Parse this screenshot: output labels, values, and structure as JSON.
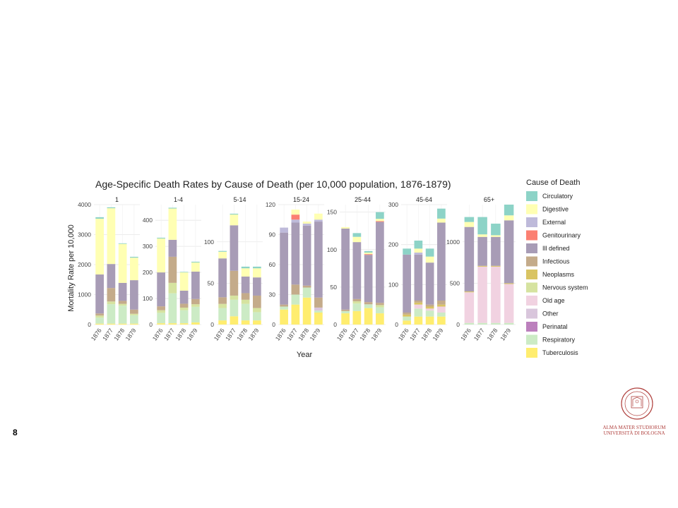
{
  "slide": {
    "page_number": "8"
  },
  "logo": {
    "line1": "ALMA MATER STUDIORUM",
    "line2": "UNIVERSITÀ DI BOLOGNA",
    "seal_text": "ALMA MATER STUDIORUM A.D. 1088",
    "color": "#b0413e"
  },
  "chart_data": {
    "type": "bar",
    "title": "Age-Specific Death Rates by Cause of Death (per 10,000 population, 1876-1879)",
    "xlabel": "Year",
    "ylabel": "Mortality Rate per 10,000",
    "legend_title": "Cause of Death",
    "legend_position": "right",
    "grid": true,
    "stacked": true,
    "categories": [
      "1876",
      "1877",
      "1878",
      "1879"
    ],
    "causes": [
      "Circulatory",
      "Digestive",
      "External",
      "Genitourinary",
      "Ill defined",
      "Infectious",
      "Neoplasms",
      "Nervous system",
      "Old age",
      "Other",
      "Perinatal",
      "Respiratory",
      "Tuberculosis"
    ],
    "colors": {
      "Circulatory": "#8dd3c7",
      "Digestive": "#ffffb3",
      "External": "#bebada",
      "Genitourinary": "#fb8072",
      "Ill defined": "#a89cb6",
      "Infectious": "#c4ab8a",
      "Neoplasms": "#d9c463",
      "Nervous system": "#d6e3a0",
      "Old age": "#f1d2e1",
      "Other": "#d9c6dc",
      "Perinatal": "#bc80bd",
      "Respiratory": "#ccebc5",
      "Tuberculosis": "#ffed6f"
    },
    "panels": [
      {
        "label": "1",
        "ylim": [
          0,
          4000
        ],
        "yticks": [
          0,
          1000,
          2000,
          3000,
          4000
        ],
        "series": [
          {
            "name": "Tuberculosis",
            "values": [
              30,
              30,
              30,
              30
            ]
          },
          {
            "name": "Respiratory",
            "values": [
              200,
              650,
              600,
              280
            ]
          },
          {
            "name": "Nervous system",
            "values": [
              70,
              90,
              60,
              50
            ]
          },
          {
            "name": "Infectious",
            "values": [
              70,
              450,
              100,
              140
            ]
          },
          {
            "name": "Ill defined",
            "values": [
              1300,
              800,
              600,
              980
            ]
          },
          {
            "name": "Digestive",
            "values": [
              1860,
              1860,
              1300,
              750
            ]
          },
          {
            "name": "Circulatory",
            "values": [
              50,
              30,
              20,
              30
            ]
          }
        ]
      },
      {
        "label": "1-4",
        "ylim": [
          0,
          460
        ],
        "yticks": [
          0,
          100,
          200,
          300,
          400
        ],
        "series": [
          {
            "name": "Tuberculosis",
            "values": [
              5,
              5,
              5,
              8
            ]
          },
          {
            "name": "Respiratory",
            "values": [
              40,
              115,
              50,
              60
            ]
          },
          {
            "name": "Nervous system",
            "values": [
              10,
              40,
              10,
              10
            ]
          },
          {
            "name": "Infectious",
            "values": [
              15,
              100,
              15,
              20
            ]
          },
          {
            "name": "Ill defined",
            "values": [
              130,
              65,
              50,
              105
            ]
          },
          {
            "name": "Digestive",
            "values": [
              130,
              120,
              70,
              35
            ]
          },
          {
            "name": "Circulatory",
            "values": [
              3,
              3,
              2,
              3
            ]
          }
        ]
      },
      {
        "label": "5-14",
        "ylim": [
          0,
          145
        ],
        "yticks": [
          0,
          50,
          100
        ],
        "series": [
          {
            "name": "Tuberculosis",
            "values": [
              5,
              10,
              5,
              5
            ]
          },
          {
            "name": "Respiratory",
            "values": [
              15,
              20,
              20,
              10
            ]
          },
          {
            "name": "Nervous system",
            "values": [
              5,
              5,
              5,
              5
            ]
          },
          {
            "name": "Infectious",
            "values": [
              8,
              30,
              8,
              15
            ]
          },
          {
            "name": "Ill defined",
            "values": [
              47,
              55,
              20,
              22
            ]
          },
          {
            "name": "Digestive",
            "values": [
              8,
              13,
              10,
              11
            ]
          },
          {
            "name": "Circulatory",
            "values": [
              1,
              1,
              2,
              2
            ]
          }
        ]
      },
      {
        "label": "15-24",
        "ylim": [
          0,
          120
        ],
        "yticks": [
          0,
          30,
          60,
          90,
          120
        ],
        "series": [
          {
            "name": "Tuberculosis",
            "values": [
              15,
              20,
              27,
              12
            ]
          },
          {
            "name": "Respiratory",
            "values": [
              3,
              10,
              10,
              2
            ]
          },
          {
            "name": "Other",
            "values": [
              0,
              0,
              0,
              3
            ]
          },
          {
            "name": "Infectious",
            "values": [
              2,
              10,
              2,
              10
            ]
          },
          {
            "name": "Ill defined",
            "values": [
              72,
              62,
              60,
              76
            ]
          },
          {
            "name": "External",
            "values": [
              5,
              3,
              2,
              2
            ]
          },
          {
            "name": "Genitourinary",
            "values": [
              0,
              5,
              0,
              0
            ]
          },
          {
            "name": "Digestive",
            "values": [
              0,
              5,
              2,
              6
            ]
          }
        ]
      },
      {
        "label": "25-44",
        "ylim": [
          0,
          160
        ],
        "yticks": [
          0,
          50,
          100,
          150
        ],
        "series": [
          {
            "name": "Tuberculosis",
            "values": [
              15,
              18,
              22,
              15
            ]
          },
          {
            "name": "Respiratory",
            "values": [
              3,
              10,
              5,
              8
            ]
          },
          {
            "name": "Nervous system",
            "values": [
              0,
              3,
              0,
              3
            ]
          },
          {
            "name": "Infectious",
            "values": [
              2,
              3,
              3,
              3
            ]
          },
          {
            "name": "Ill defined",
            "values": [
              108,
              76,
              63,
              108
            ]
          },
          {
            "name": "Genitourinary",
            "values": [
              0,
              0,
              1,
              1
            ]
          },
          {
            "name": "Digestive",
            "values": [
              2,
              7,
              2,
              3
            ]
          },
          {
            "name": "Circulatory",
            "values": [
              0,
              5,
              2,
              9
            ]
          }
        ]
      },
      {
        "label": "45-64",
        "ylim": [
          0,
          300
        ],
        "yticks": [
          0,
          100,
          200,
          300
        ],
        "series": [
          {
            "name": "Tuberculosis",
            "values": [
              10,
              20,
              20,
              20
            ]
          },
          {
            "name": "Respiratory",
            "values": [
              10,
              20,
              15,
              10
            ]
          },
          {
            "name": "Old age",
            "values": [
              0,
              10,
              5,
              15
            ]
          },
          {
            "name": "Neoplasms",
            "values": [
              5,
              5,
              5,
              5
            ]
          },
          {
            "name": "Infectious",
            "values": [
              5,
              5,
              5,
              10
            ]
          },
          {
            "name": "Ill defined",
            "values": [
              145,
              115,
              105,
              195
            ]
          },
          {
            "name": "External",
            "values": [
              0,
              5,
              0,
              0
            ]
          },
          {
            "name": "Digestive",
            "values": [
              0,
              10,
              15,
              10
            ]
          },
          {
            "name": "Circulatory",
            "values": [
              15,
              20,
              20,
              25
            ]
          }
        ]
      },
      {
        "label": "65+",
        "ylim": [
          0,
          1450
        ],
        "yticks": [
          0,
          500,
          1000
        ],
        "series": [
          {
            "name": "Respiratory",
            "values": [
              20,
              20,
              20,
              20
            ]
          },
          {
            "name": "Old age",
            "values": [
              370,
              680,
              680,
              470
            ]
          },
          {
            "name": "Neoplasms",
            "values": [
              10,
              10,
              10,
              10
            ]
          },
          {
            "name": "Ill defined",
            "values": [
              780,
              350,
              350,
              760
            ]
          },
          {
            "name": "Digestive",
            "values": [
              60,
              30,
              20,
              60
            ]
          },
          {
            "name": "Circulatory",
            "values": [
              60,
              210,
              140,
              130
            ]
          }
        ]
      }
    ]
  }
}
